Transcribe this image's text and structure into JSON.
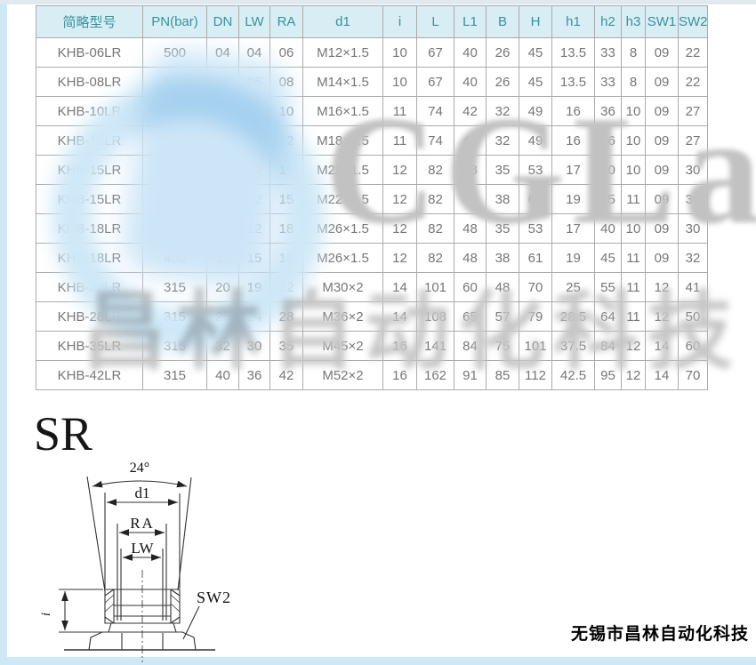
{
  "page": {
    "section_label": "SR",
    "company": "无锡市昌林自动化科技"
  },
  "table": {
    "columns": [
      "简略型号",
      "PN(bar)",
      "DN",
      "LW",
      "RA",
      "d1",
      "i",
      "L",
      "L1",
      "B",
      "H",
      "h1",
      "h2",
      "h3",
      "SW1",
      "SW2"
    ],
    "rows": [
      [
        "KHB-06LR",
        "500",
        "04",
        "04",
        "06",
        "M12×1.5",
        "10",
        "67",
        "40",
        "26",
        "45",
        "13.5",
        "33",
        "8",
        "09",
        "22"
      ],
      [
        "KHB-08LR",
        "500",
        "06",
        "06",
        "08",
        "M14×1.5",
        "10",
        "67",
        "40",
        "26",
        "45",
        "13.5",
        "33",
        "8",
        "09",
        "22"
      ],
      [
        "KHB-10LR",
        "500",
        "08",
        "08",
        "10",
        "M16×1.5",
        "11",
        "74",
        "42",
        "32",
        "49",
        "16",
        "36",
        "10",
        "09",
        "27"
      ],
      [
        "KHB-12LR",
        "500",
        "10",
        "10",
        "12",
        "M18×1.5",
        "11",
        "74",
        "42",
        "32",
        "49",
        "16",
        "36",
        "10",
        "09",
        "27"
      ],
      [
        "KHB-15LR",
        "500",
        "13",
        "12",
        "15",
        "M22×1.5",
        "12",
        "82",
        "48",
        "35",
        "53",
        "17",
        "40",
        "10",
        "09",
        "30"
      ],
      [
        "KHB-15LR",
        "500",
        "12",
        "12",
        "15",
        "M22×1.5",
        "12",
        "82",
        "48",
        "38",
        "61",
        "19",
        "45",
        "11",
        "09",
        "32"
      ],
      [
        "KHB-18LR",
        "500",
        "13",
        "12",
        "18",
        "M26×1.5",
        "12",
        "82",
        "48",
        "35",
        "53",
        "17",
        "40",
        "10",
        "09",
        "30"
      ],
      [
        "KHB-18LR",
        "400",
        "16",
        "15",
        "18",
        "M26×1.5",
        "12",
        "82",
        "48",
        "38",
        "61",
        "19",
        "45",
        "11",
        "09",
        "32"
      ],
      [
        "KHB-22LR",
        "315",
        "20",
        "19",
        "22",
        "M30×2",
        "14",
        "101",
        "60",
        "48",
        "70",
        "25",
        "55",
        "11",
        "12",
        "41"
      ],
      [
        "KHB-28LR",
        "315",
        "25",
        "24",
        "28",
        "M36×2",
        "14",
        "108",
        "65",
        "57",
        "79",
        "28.5",
        "64",
        "11",
        "12",
        "50"
      ],
      [
        "KHB-35LR",
        "315",
        "32",
        "30",
        "35",
        "M45×2",
        "16",
        "141",
        "84",
        "75",
        "101",
        "37.5",
        "84",
        "12",
        "14",
        "60"
      ],
      [
        "KHB-42LR",
        "315",
        "40",
        "36",
        "42",
        "M52×2",
        "16",
        "162",
        "91",
        "85",
        "112",
        "42.5",
        "95",
        "12",
        "14",
        "70"
      ]
    ]
  },
  "diagram": {
    "angle_label": "24°",
    "d1_label": "d1",
    "ra_label": "RA",
    "lw_label": "LW",
    "i_label": "i",
    "sw2_label": "SW2"
  },
  "watermark": {
    "text_large": "CGLair",
    "text_cn": "昌林自动化科技"
  },
  "colors": {
    "header_bg": "#d9eef4",
    "header_text": "#35929f",
    "cell_text": "#767676",
    "border": "#ababab",
    "edge_strip": "#cfe8f5",
    "watermark_blue": "#cde6f7",
    "watermark_gray": "#c2c2c2"
  }
}
